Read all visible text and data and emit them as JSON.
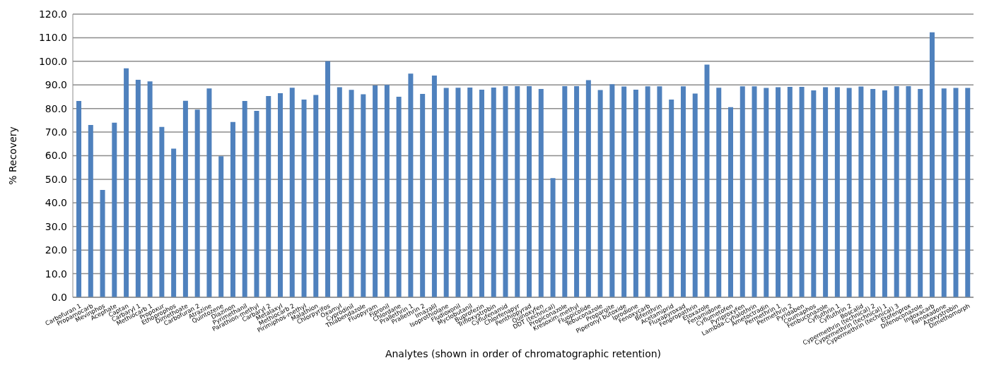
{
  "chart_data": {
    "type": "bar",
    "xlabel": "Analytes (shown in order of chromatographic retention)",
    "ylabel": "% Recovery",
    "color": "#4f81bd",
    "grid": "y",
    "ylim": [
      0,
      120
    ],
    "yticks": [
      {
        "value": 0,
        "label": "0.0"
      },
      {
        "value": 10,
        "label": "10.0"
      },
      {
        "value": 20,
        "label": "20.0"
      },
      {
        "value": 30,
        "label": "30.0"
      },
      {
        "value": 40,
        "label": "40.0"
      },
      {
        "value": 50,
        "label": "50.0"
      },
      {
        "value": 60,
        "label": "60.0"
      },
      {
        "value": 70,
        "label": "70.0"
      },
      {
        "value": 80,
        "label": "80.0"
      },
      {
        "value": 90,
        "label": "90.0"
      },
      {
        "value": 100,
        "label": "100.0"
      },
      {
        "value": 110,
        "label": "110.0"
      },
      {
        "value": 120,
        "label": "120.0"
      }
    ],
    "categories": [
      "Carbofuran 1",
      "Propamocarb",
      "Mevinphos",
      "Acephate",
      "Captan",
      "Carbaryl 1",
      "Methiocarb 1",
      "Propoxur",
      "Ethoprophos",
      "Dimethoate",
      "Carbofuran 2",
      "Atrazine",
      "Quintozene",
      "Diazinon",
      "Pyrimethanil",
      "Parathion-methyl",
      "Carbaryl 2",
      "Metalaxyl",
      "Methiocarb 2",
      "Pirimiphos-methyl",
      "Malathion",
      "Chlorpyrifos",
      "Oxamyl",
      "Cyprodinil",
      "Thiabendazole",
      "Fluopyram",
      "Fipronil",
      "Chlordane",
      "Prallethrin 1",
      "Prallethrin 2",
      "Imazalil",
      "Isoprothiolane",
      "Fludioxonil",
      "Myclobutanil",
      "Buprofezin",
      "Trifloxystrobin",
      "Cyflufenamid",
      "Chlorfenapyr",
      "Penthiopyrad",
      "Quinoxyfen",
      "DDT (technical)",
      "Propiconazole",
      "Kresoxim-methyl",
      "Fluopicolide",
      "Tebuconazole",
      "Propargite",
      "Piperonyl butoxide",
      "Iprodione",
      "Fenoxycarb",
      "Bifenthrin",
      "Acetamiprid",
      "Fluxapyroxad",
      "Fenpropathrin",
      "Etoxazole",
      "Fenamidone",
      "Cyflumetofen",
      "Pyriproxyfen",
      "Lambda-Cyhalothrin",
      "Ametoctradin",
      "Permethrin 1",
      "Permethrin 2",
      "Pyridaben",
      "Coumaphos",
      "Fenbuconazole",
      "Cyfluthrin 1",
      "Cyfluthrin 2",
      "Boscalid",
      "Cypermethrin (technical) 2",
      "Cypermethrin (technical) 1",
      "Cypermethrin (technical) 3",
      "Etofenprox",
      "Difenoconazole",
      "Indoxacarb",
      "Famoxadone",
      "Azoxystrobin",
      "Dimethomorph"
    ],
    "values": [
      83.2,
      73,
      45.5,
      74,
      97,
      92.2,
      91.5,
      72.2,
      63,
      83.3,
      79.5,
      88.5,
      59.8,
      74.3,
      83.2,
      79,
      85.3,
      86.5,
      88.8,
      83.8,
      85.7,
      100,
      89,
      87.9,
      86,
      89.8,
      90,
      85,
      94.8,
      86.2,
      94,
      88.7,
      88.8,
      88.9,
      88,
      88.9,
      89.5,
      89.5,
      89.5,
      88.3,
      50.5,
      89.5,
      89.5,
      92,
      87.8,
      90.3,
      89.3,
      88,
      89.4,
      89.4,
      83.8,
      89.4,
      86.3,
      98.6,
      88.8,
      80.6,
      89.4,
      89.4,
      88.7,
      89,
      89.2,
      89.2,
      87.7,
      89,
      89,
      88.7,
      89.3,
      88.3,
      87.7,
      89.5,
      89.5,
      88.3,
      112.3,
      88.5,
      88.7,
      88.7
    ]
  }
}
